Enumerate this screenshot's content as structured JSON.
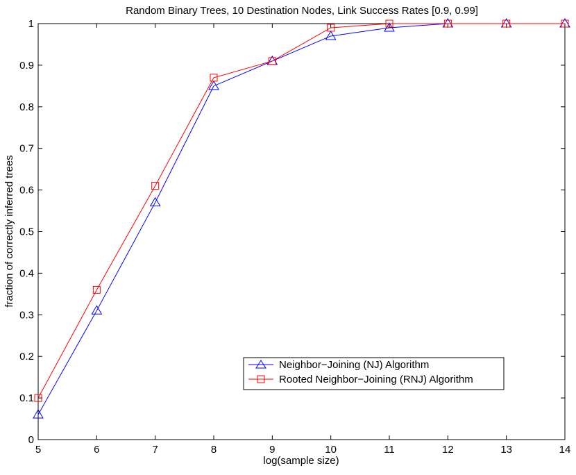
{
  "chart_data": {
    "type": "line",
    "title": "Random Binary Trees, 10 Destination Nodes, Link Success Rates [0.9, 0.99]",
    "xlabel": "log(sample size)",
    "ylabel": "fraction of correctly inferred trees",
    "xlim": [
      5,
      14
    ],
    "ylim": [
      0,
      1
    ],
    "xticks": [
      5,
      6,
      7,
      8,
      9,
      10,
      11,
      12,
      13,
      14
    ],
    "yticks": [
      0,
      0.1,
      0.2,
      0.3,
      0.4,
      0.5,
      0.6,
      0.7,
      0.8,
      0.9,
      1
    ],
    "ytick_labels": [
      "0",
      "0.1",
      "0.2",
      "0.3",
      "0.4",
      "0.5",
      "0.6",
      "0.7",
      "0.8",
      "0.9",
      "1"
    ],
    "grid": false,
    "legend_position": "lower-right",
    "x": [
      5,
      6,
      7,
      8,
      9,
      10,
      11,
      12,
      13,
      14
    ],
    "series": [
      {
        "name": "Neighbor−Joining (NJ) Algorithm",
        "color": "#0000ff",
        "marker": "triangle",
        "values": [
          0.06,
          0.31,
          0.57,
          0.85,
          0.91,
          0.97,
          0.99,
          1.0,
          1.0,
          1.0
        ]
      },
      {
        "name": "Rooted Neighbor−Joining (RNJ) Algorithm",
        "color": "#ff0000",
        "marker": "square",
        "values": [
          0.1,
          0.36,
          0.61,
          0.87,
          0.91,
          0.99,
          1.0,
          1.0,
          1.0,
          1.0
        ]
      }
    ]
  }
}
